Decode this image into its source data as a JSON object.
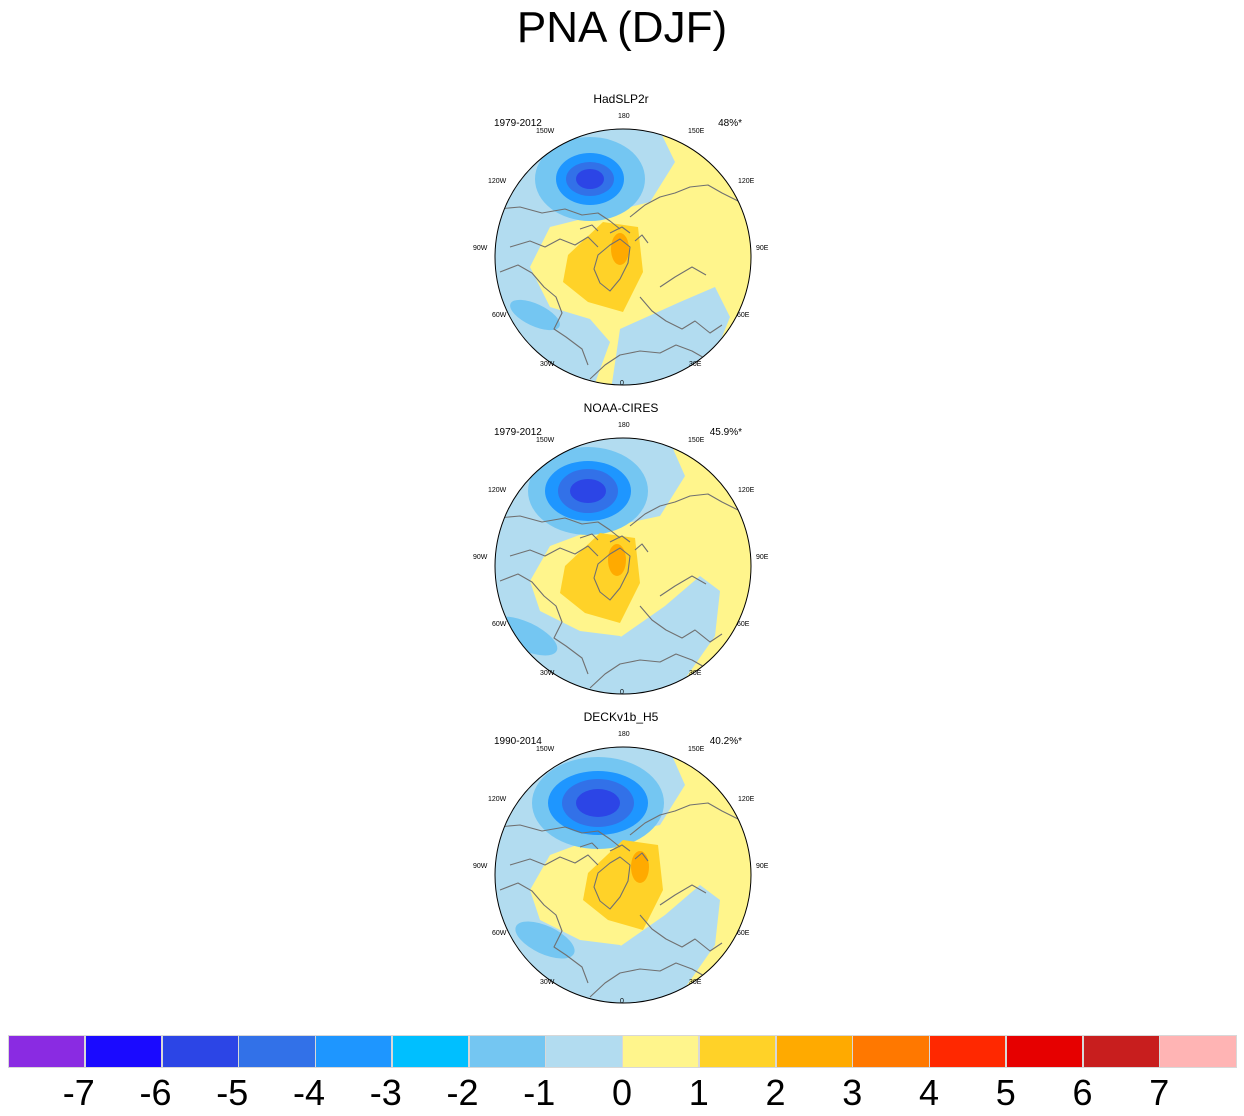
{
  "title": "PNA (DJF)",
  "panels": [
    {
      "name": "HadSLP2r",
      "period": "1979-2012",
      "variance": "48%*"
    },
    {
      "name": "NOAA-CIRES",
      "period": "1979-2012",
      "variance": "45.9%*"
    },
    {
      "name": "DECKv1b_H5",
      "period": "1990-2014",
      "variance": "40.2%*"
    }
  ],
  "longitude_labels": {
    "deg180": "180",
    "e150": "150E",
    "e120": "120E",
    "e90": "90E",
    "e60": "60E",
    "e30": "30E",
    "deg0": "0",
    "w30": "30W",
    "w60": "60W",
    "w90": "90W",
    "w120": "120W",
    "w150": "150W"
  },
  "colorbar": {
    "colors": [
      "#8a2be2",
      "#1a0aff",
      "#2c45e6",
      "#3271e8",
      "#1e96ff",
      "#00bfff",
      "#74c6f2",
      "#b2dcf0",
      "#fff58c",
      "#ffd228",
      "#ffaa00",
      "#ff7800",
      "#ff2800",
      "#e60000",
      "#c81e1e",
      "#ffb4b4"
    ],
    "ticks": [
      "-7",
      "-6",
      "-5",
      "-4",
      "-3",
      "-2",
      "-1",
      "0",
      "1",
      "2",
      "3",
      "4",
      "5",
      "6",
      "7"
    ]
  },
  "field_colors": {
    "neg1": "#b2dcf0",
    "neg2": "#74c6f2",
    "neg3": "#1e96ff",
    "neg4": "#3271e8",
    "neg5": "#2c45e6",
    "zero": "#fff58c",
    "pos1": "#ffd228",
    "pos2": "#ffaa00",
    "coast": "#707070"
  }
}
